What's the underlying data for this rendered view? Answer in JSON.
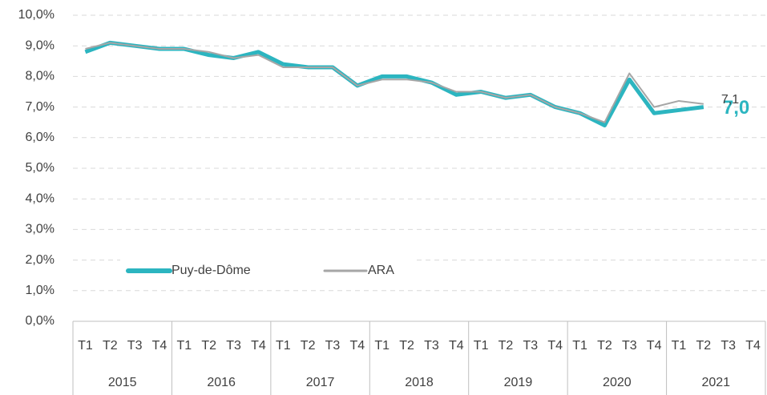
{
  "chart_data": {
    "type": "line",
    "categories": [
      "T1",
      "T2",
      "T3",
      "T4",
      "T1",
      "T2",
      "T3",
      "T4",
      "T1",
      "T2",
      "T3",
      "T4",
      "T1",
      "T2",
      "T3",
      "T4",
      "T1",
      "T2",
      "T3",
      "T4",
      "T1",
      "T2",
      "T3",
      "T4",
      "T1",
      "T2",
      "T3",
      "T4"
    ],
    "year_groups": [
      "2015",
      "2016",
      "2017",
      "2018",
      "2019",
      "2020",
      "2021"
    ],
    "series": [
      {
        "name": "Puy-de-Dôme",
        "color": "#2cb5c0",
        "values": [
          8.8,
          9.1,
          9.0,
          8.9,
          8.9,
          8.7,
          8.6,
          8.8,
          8.4,
          8.3,
          8.3,
          7.7,
          8.0,
          8.0,
          7.8,
          7.4,
          7.5,
          7.3,
          7.4,
          7.0,
          6.8,
          6.4,
          7.9,
          6.8,
          6.9,
          7.0,
          null,
          null
        ],
        "value_labels": [
          null,
          null,
          null,
          null,
          null,
          null,
          null,
          null,
          null,
          null,
          null,
          null,
          null,
          null,
          null,
          null,
          null,
          null,
          null,
          null,
          null,
          null,
          null,
          null,
          null,
          "7,0",
          null,
          null
        ]
      },
      {
        "name": "ARA",
        "color": "#a6a6a6",
        "values": [
          8.9,
          9.1,
          9.0,
          8.9,
          8.9,
          8.8,
          8.6,
          8.7,
          8.3,
          8.3,
          8.3,
          7.7,
          7.9,
          7.9,
          7.8,
          7.5,
          7.5,
          7.3,
          7.4,
          7.0,
          6.8,
          6.5,
          8.1,
          7.0,
          7.2,
          7.1,
          null,
          null
        ],
        "value_labels": [
          null,
          null,
          null,
          null,
          null,
          null,
          null,
          null,
          null,
          null,
          null,
          null,
          null,
          null,
          null,
          null,
          null,
          null,
          null,
          null,
          null,
          null,
          null,
          null,
          null,
          "7,1",
          null,
          null
        ]
      }
    ],
    "ylim": [
      0,
      10
    ],
    "yticks": [
      {
        "value": 0,
        "label": "0,0%"
      },
      {
        "value": 1,
        "label": "1,0%"
      },
      {
        "value": 2,
        "label": "2,0%"
      },
      {
        "value": 3,
        "label": "3,0%"
      },
      {
        "value": 4,
        "label": "4,0%"
      },
      {
        "value": 5,
        "label": "5,0%"
      },
      {
        "value": 6,
        "label": "6,0%"
      },
      {
        "value": 7,
        "label": "7,0%"
      },
      {
        "value": 8,
        "label": "8,0%"
      },
      {
        "value": 9,
        "label": "9,0%"
      },
      {
        "value": 10,
        "label": "10,0%"
      }
    ],
    "grid": true
  }
}
